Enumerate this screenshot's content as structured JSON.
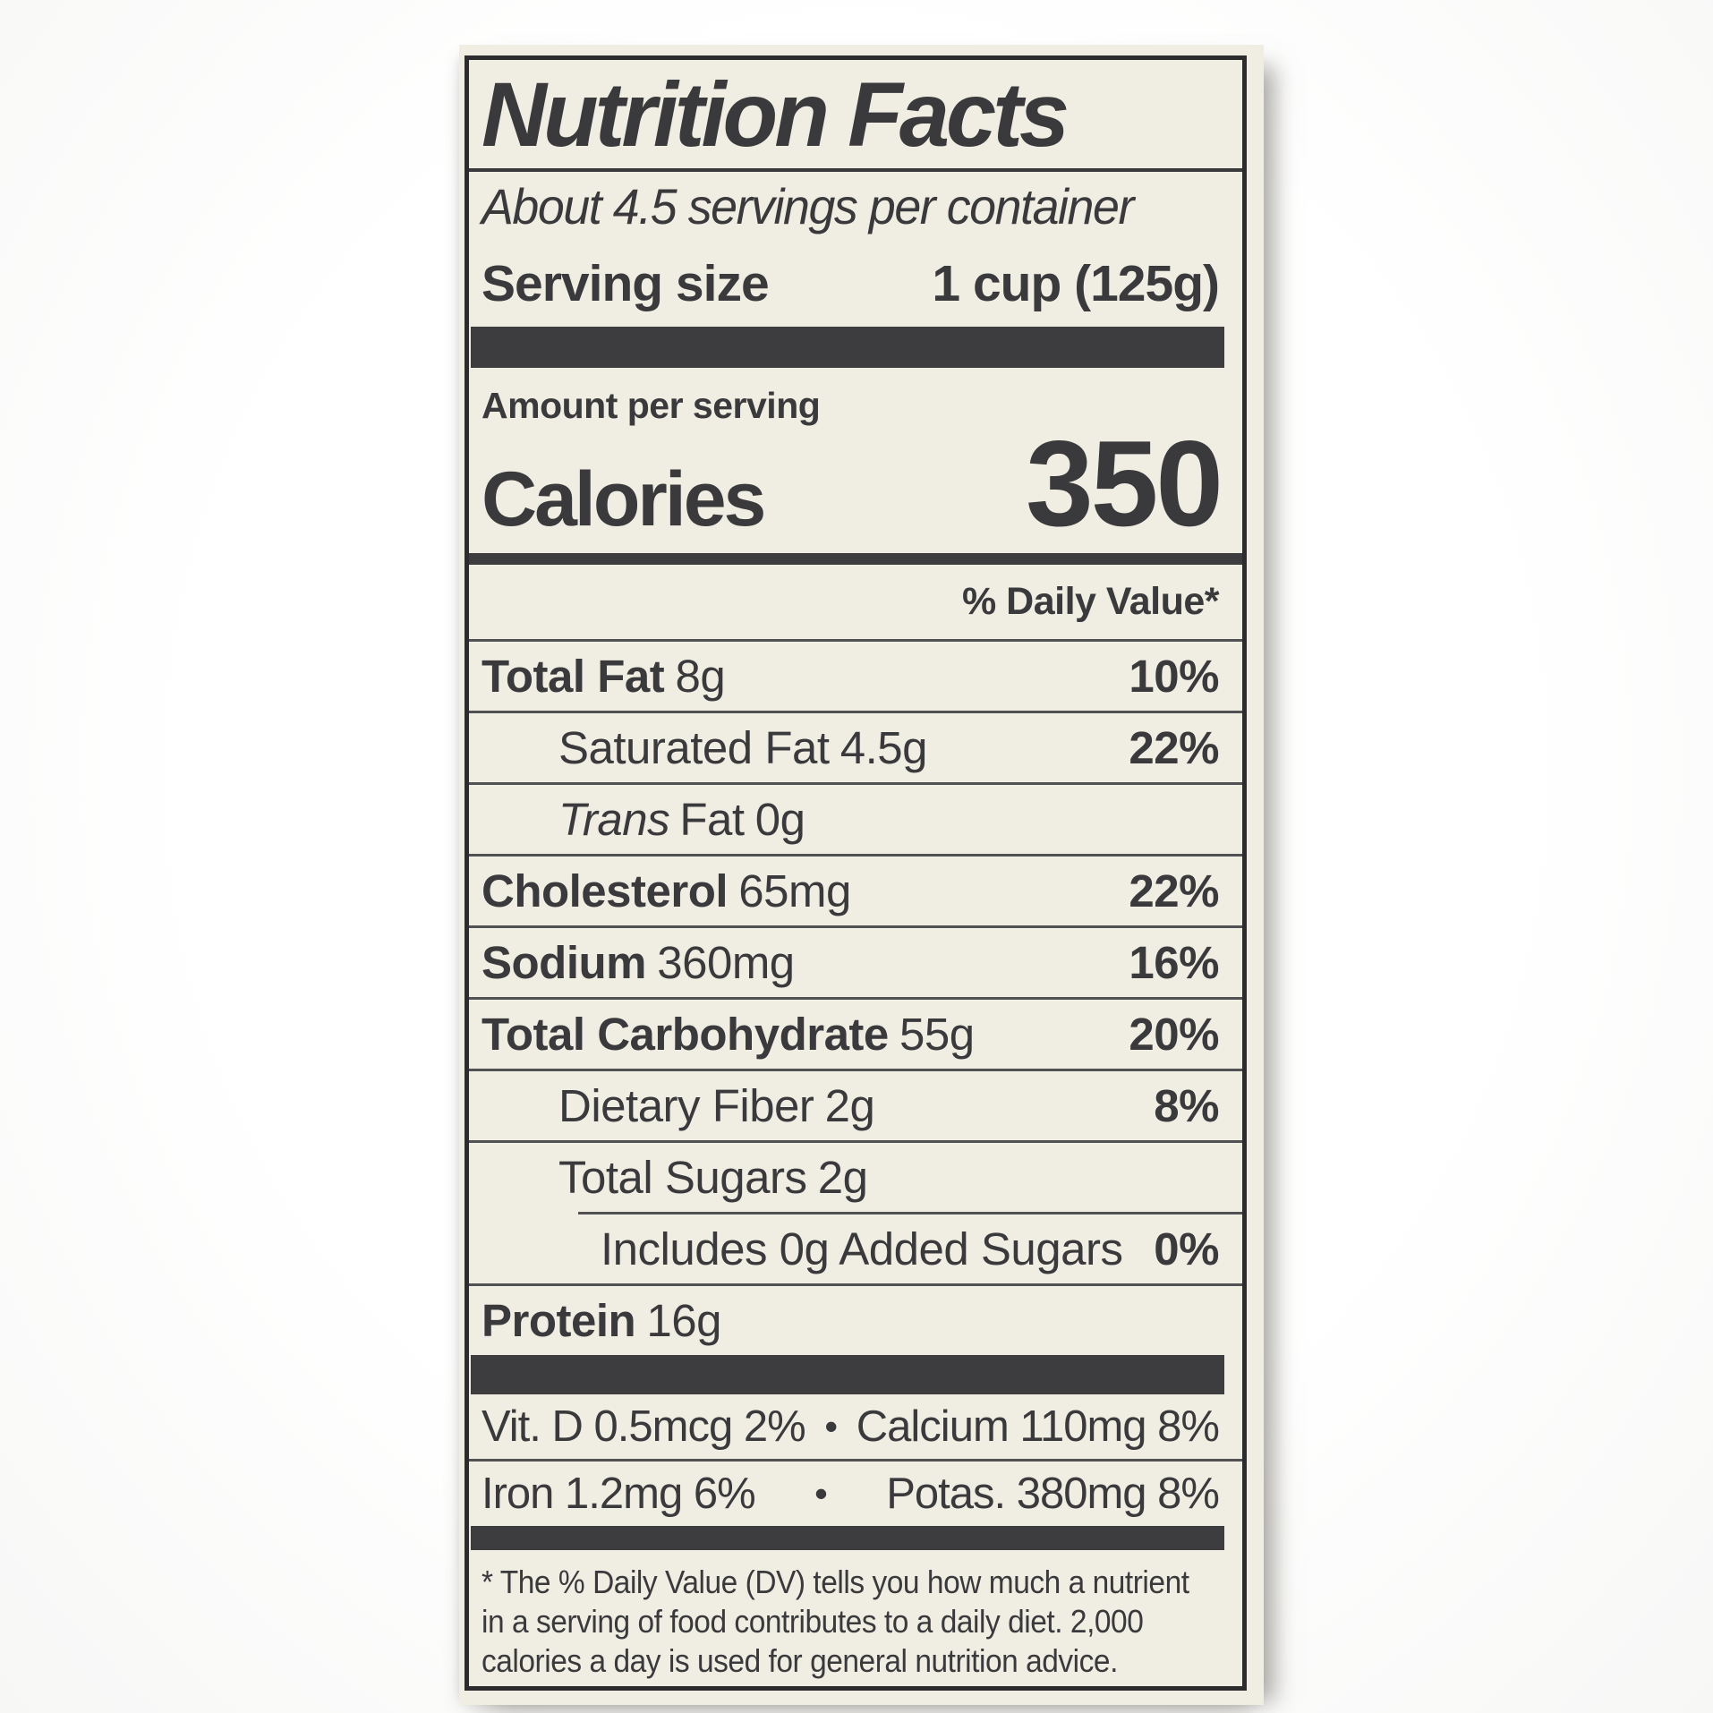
{
  "label": {
    "title": "Nutrition Facts",
    "servings_per_container": "About 4.5 servings per container",
    "serving_size_label": "Serving size",
    "serving_size_value": "1 cup (125g)",
    "amount_per_serving": "Amount per serving",
    "calories_label": "Calories",
    "calories_value": "350",
    "daily_value_header": "% Daily Value*",
    "nutrients": [
      {
        "name": "Total Fat",
        "amount": "8g",
        "dv": "10%"
      },
      {
        "name": "Saturated Fat",
        "amount": "4.5g",
        "dv": "22%"
      },
      {
        "name_italic": "Trans",
        "name": "Fat",
        "amount": "0g",
        "dv": ""
      },
      {
        "name": "Cholesterol",
        "amount": "65mg",
        "dv": "22%"
      },
      {
        "name": "Sodium",
        "amount": "360mg",
        "dv": "16%"
      },
      {
        "name": "Total Carbohydrate",
        "amount": "55g",
        "dv": "20%"
      },
      {
        "name": "Dietary Fiber",
        "amount": "2g",
        "dv": "8%"
      },
      {
        "name": "Total Sugars",
        "amount": "2g",
        "dv": ""
      },
      {
        "name": "Includes 0g Added Sugars",
        "amount": "",
        "dv": "0%"
      },
      {
        "name": "Protein",
        "amount": "16g",
        "dv": ""
      }
    ],
    "bullet": "•",
    "micronutrients": [
      {
        "left": "Vit. D 0.5mcg 2%",
        "right": "Calcium 110mg 8%"
      },
      {
        "left": "Iron 1.2mg 6%",
        "right": "Potas. 380mg 8%"
      }
    ],
    "footnote_lines": [
      "* The % Daily Value (DV) tells you how much a nutrient",
      "in a serving of food contributes to a daily diet. 2,000",
      "calories a day is used for general nutrition advice."
    ]
  },
  "colors": {
    "ink": "#3a3a3c",
    "bars": "#3d3d40",
    "label_background": "#f0eee3",
    "page_background": "#ffffff"
  }
}
